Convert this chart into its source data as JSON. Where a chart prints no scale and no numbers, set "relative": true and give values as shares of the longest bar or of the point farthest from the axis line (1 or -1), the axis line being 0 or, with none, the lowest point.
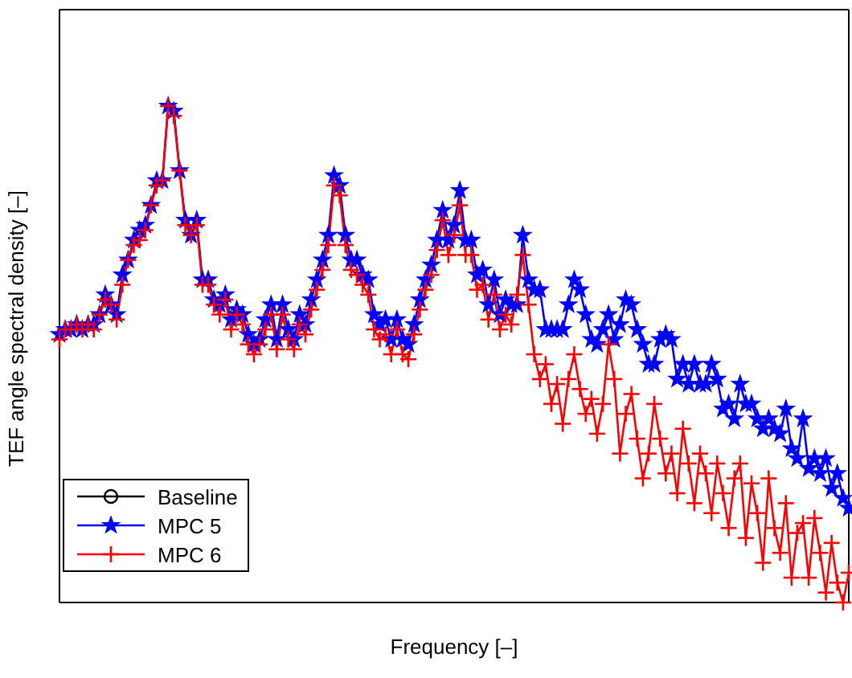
{
  "chart_data": {
    "type": "line",
    "relative": true,
    "xlabel": "Frequency [–]",
    "ylabel": "TEF angle spectral density [–]",
    "legend": "bottom left",
    "categories": [
      null,
      null,
      null,
      null,
      null,
      null,
      null,
      null,
      null,
      null,
      null,
      null,
      null,
      null,
      null,
      null,
      null,
      null,
      null,
      null,
      null,
      null,
      null,
      null,
      null,
      null,
      null,
      null,
      null,
      null,
      null,
      null,
      null,
      null,
      null,
      null,
      null,
      null,
      null,
      null,
      null,
      null,
      null,
      null,
      null,
      null,
      null,
      null,
      null,
      null,
      null,
      null,
      null,
      null,
      null,
      null,
      null,
      null,
      null,
      null,
      null,
      null,
      null,
      null,
      null,
      null,
      null,
      null,
      null,
      null,
      null,
      null,
      null,
      null,
      null,
      null,
      null,
      null,
      null,
      null,
      null,
      null,
      null,
      null,
      null,
      null,
      null,
      null,
      null,
      null,
      null,
      null,
      null,
      null,
      null,
      null,
      null,
      null,
      null,
      null,
      null,
      null,
      null,
      null,
      null,
      null,
      null,
      null,
      null,
      null,
      null,
      null,
      null,
      null,
      null,
      null,
      null,
      null,
      null,
      null,
      null,
      null,
      null,
      null,
      null,
      null,
      null,
      null,
      null,
      null,
      null,
      null,
      null,
      null,
      null,
      null,
      null,
      null,
      null
    ],
    "series": [
      {
        "name": "Baseline",
        "color": "#000000",
        "marker": "circle",
        "values": [
          null,
          null,
          null,
          null,
          null,
          null,
          null,
          null,
          null,
          null,
          null,
          null,
          null,
          null,
          null,
          null,
          null,
          null,
          null,
          null,
          null,
          null,
          null,
          null,
          null,
          null,
          null,
          null,
          null,
          null,
          null,
          null,
          null,
          null,
          null,
          null,
          null,
          null,
          null,
          null,
          null,
          null,
          null,
          null,
          null,
          null,
          null,
          null,
          null,
          null,
          null,
          null,
          null,
          null,
          null,
          null,
          null,
          null,
          null,
          null,
          null,
          null,
          null,
          null,
          null,
          null,
          null,
          null,
          null,
          null,
          null,
          null,
          null,
          null,
          null,
          null,
          null,
          null,
          null,
          null,
          null,
          null,
          null,
          null,
          null,
          null,
          null,
          null,
          null,
          null,
          null,
          null,
          null,
          null,
          null,
          null,
          null,
          null,
          null,
          null,
          null,
          null,
          null,
          null,
          null,
          null,
          null,
          null,
          null,
          null,
          null,
          null,
          null,
          null,
          null,
          null,
          null,
          null,
          null,
          null,
          null,
          null,
          null,
          null,
          null,
          null,
          null,
          null,
          null,
          null,
          null,
          null,
          null,
          null,
          null,
          null,
          null,
          null,
          null
        ]
      },
      {
        "name": "MPC 5",
        "color": "#0000ff",
        "marker": "star",
        "values": [
          0.54,
          0.55,
          0.55,
          0.56,
          0.55,
          0.56,
          0.56,
          0.58,
          0.62,
          0.6,
          0.58,
          0.66,
          0.69,
          0.73,
          0.75,
          0.76,
          0.8,
          0.85,
          0.85,
          1,
          0.99,
          0.87,
          0.77,
          0.74,
          0.77,
          0.65,
          0.65,
          0.61,
          0.6,
          0.62,
          0.57,
          0.59,
          0.58,
          0.54,
          0.52,
          0.53,
          0.57,
          0.6,
          0.53,
          0.6,
          0.55,
          0.53,
          0.58,
          0.56,
          0.61,
          0.65,
          0.69,
          0.74,
          0.86,
          0.84,
          0.74,
          0.69,
          0.69,
          0.66,
          0.65,
          0.58,
          0.56,
          0.57,
          0.53,
          0.57,
          0.53,
          0.52,
          0.56,
          0.61,
          0.65,
          0.68,
          0.73,
          0.79,
          0.73,
          0.76,
          0.83,
          0.73,
          0.73,
          0.66,
          0.67,
          0.6,
          0.65,
          0.58,
          0.61,
          0.6,
          0.6,
          0.74,
          0.65,
          0.63,
          0.63,
          0.55,
          0.55,
          0.55,
          0.55,
          0.6,
          0.65,
          0.63,
          0.58,
          0.53,
          0.52,
          0.55,
          0.58,
          0.53,
          0.56,
          0.61,
          0.6,
          0.55,
          0.52,
          0.48,
          0.48,
          0.53,
          0.54,
          0.53,
          0.45,
          0.48,
          0.44,
          0.48,
          0.44,
          0.44,
          0.48,
          0.45,
          0.39,
          0.4,
          0.37,
          0.44,
          0.4,
          0.4,
          0.37,
          0.35,
          0.37,
          0.35,
          0.34,
          0.39,
          0.31,
          0.29,
          0.37,
          0.27,
          0.29,
          0.26,
          0.29,
          0.23,
          0.26,
          0.21,
          0.19
        ]
      },
      {
        "name": "MPC 6",
        "color": "#ff0000",
        "marker": "cross",
        "values": [
          0.53,
          0.55,
          0.55,
          0.56,
          0.55,
          0.56,
          0.55,
          0.58,
          0.61,
          0.6,
          0.57,
          0.64,
          0.69,
          0.72,
          0.73,
          0.75,
          0.8,
          0.84,
          0.85,
          1,
          0.98,
          0.87,
          0.76,
          0.74,
          0.76,
          0.64,
          0.64,
          0.6,
          0.58,
          0.61,
          0.55,
          0.58,
          0.56,
          0.52,
          0.5,
          0.52,
          0.55,
          0.58,
          0.51,
          0.58,
          0.53,
          0.51,
          0.56,
          0.54,
          0.59,
          0.63,
          0.67,
          0.72,
          0.84,
          0.82,
          0.72,
          0.67,
          0.66,
          0.64,
          0.62,
          0.55,
          0.53,
          0.54,
          0.5,
          0.55,
          0.5,
          0.49,
          0.54,
          0.59,
          0.63,
          0.66,
          0.71,
          0.77,
          0.7,
          0.74,
          0.8,
          0.7,
          0.7,
          0.63,
          0.64,
          0.57,
          0.62,
          0.55,
          0.58,
          0.56,
          0.62,
          0.7,
          0.6,
          0.5,
          0.45,
          0.48,
          0.4,
          0.44,
          0.36,
          0.45,
          0.5,
          0.43,
          0.38,
          0.41,
          0.34,
          0.4,
          0.52,
          0.45,
          0.3,
          0.38,
          0.42,
          0.33,
          0.25,
          0.3,
          0.4,
          0.33,
          0.26,
          0.3,
          0.22,
          0.35,
          0.28,
          0.2,
          0.3,
          0.26,
          0.18,
          0.28,
          0.22,
          0.15,
          0.25,
          0.28,
          0.13,
          0.24,
          0.18,
          0.08,
          0.25,
          0.15,
          0.1,
          0.2,
          0.05,
          0.14,
          0.16,
          0.05,
          0.17,
          0.1,
          0.02,
          0.12,
          0.04,
          0,
          0.06
        ]
      }
    ]
  }
}
